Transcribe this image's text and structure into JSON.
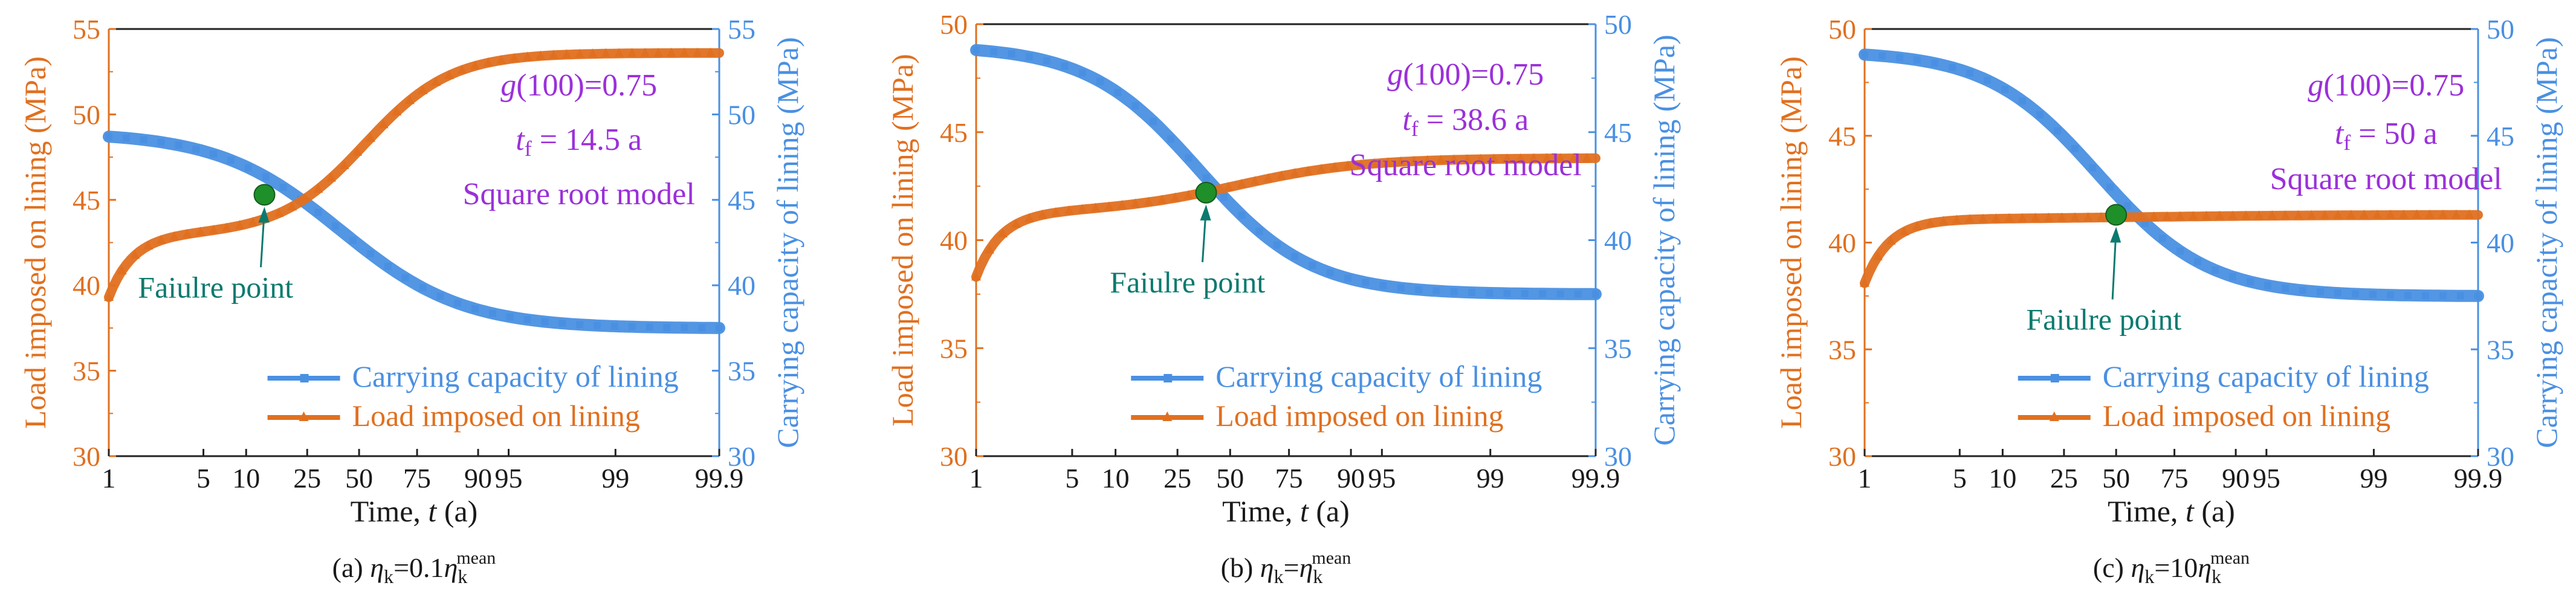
{
  "colors": {
    "load": "#e07020",
    "capacity": "#4a90e2",
    "failure": "#1f8f2a",
    "annotation": "#9b30d9",
    "failure_text": "#0b7a6f"
  },
  "chart_data": [
    {
      "type": "line",
      "panel": "a",
      "caption": {
        "prefix": "(a) ",
        "eta": "η",
        "sub": "k",
        "rel": "=0.1",
        "eta2": "η",
        "sub2": "k",
        "sup2": "mean"
      },
      "xlabel": {
        "prefix": "Time, ",
        "var": "t",
        "suffix": " (a)"
      },
      "ylabel_left": "Load imposed on lining (MPa)",
      "ylabel_right": "Carrying capacity of lining (MPa)",
      "ylim": [
        30,
        55
      ],
      "yticks": [
        "30",
        "35",
        "40",
        "45",
        "50",
        "55"
      ],
      "xticks": [
        "1",
        "5",
        "10",
        "25",
        "50",
        "75",
        "90",
        "95",
        "99",
        "99.9"
      ],
      "annotation": {
        "g_label": "g",
        "g_value": "(100)=0.75",
        "tf_var": "t",
        "tf_sub": "f",
        "tf_value": " = 14.5 a",
        "model": "Square root model"
      },
      "failure_label": "Faiulre point",
      "failure_point": {
        "t": 14.5,
        "value": 45.3
      },
      "legend": [
        "Carrying capacity of lining",
        "Load imposed on lining"
      ],
      "series": [
        {
          "name": "Load imposed on lining",
          "axis": "left",
          "start": 39.3,
          "shoulder": 43.0,
          "final": 53.6,
          "rise_center": 0.42,
          "rise_width": 0.07
        },
        {
          "name": "Carrying capacity of lining",
          "axis": "right",
          "start": 48.7,
          "final": 37.5,
          "drop_center": 0.38,
          "drop_width": 0.1
        }
      ]
    },
    {
      "type": "line",
      "panel": "b",
      "caption": {
        "prefix": "(b) ",
        "eta": "η",
        "sub": "k",
        "rel": "=",
        "eta2": "η",
        "sub2": "k",
        "sup2": "mean"
      },
      "xlabel": {
        "prefix": "Time, ",
        "var": "t",
        "suffix": " (a)"
      },
      "ylabel_left": "Load imposed on lining (MPa)",
      "ylabel_right": "Carrying capacity of lining (MPa)",
      "ylim": [
        30,
        50
      ],
      "yticks": [
        "30",
        "35",
        "40",
        "45",
        "50"
      ],
      "xticks": [
        "1",
        "5",
        "10",
        "25",
        "50",
        "75",
        "90",
        "95",
        "99",
        "99.9"
      ],
      "annotation": {
        "g_label": "g",
        "g_value": "(100)=0.75",
        "tf_var": "t",
        "tf_sub": "f",
        "tf_value": " = 38.6 a",
        "model": "Square root model"
      },
      "failure_label": "Faiulre point",
      "failure_point": {
        "t": 38.6,
        "value": 42.2
      },
      "legend": [
        "Carrying capacity of lining",
        "Load imposed on lining"
      ],
      "series": [
        {
          "name": "Load imposed on lining",
          "axis": "left",
          "start": 38.3,
          "shoulder": 41.3,
          "final": 43.8,
          "rise_center": 0.42,
          "rise_width": 0.1
        },
        {
          "name": "Carrying capacity of lining",
          "axis": "right",
          "start": 48.8,
          "final": 37.5,
          "drop_center": 0.36,
          "drop_width": 0.09
        }
      ]
    },
    {
      "type": "line",
      "panel": "c",
      "caption": {
        "prefix": "(c) ",
        "eta": "η",
        "sub": "k",
        "rel": "=10",
        "eta2": "η",
        "sub2": "k",
        "sup2": "mean"
      },
      "xlabel": {
        "prefix": "Time, ",
        "var": "t",
        "suffix": " (a)"
      },
      "ylabel_left": "Load imposed on lining (MPa)",
      "ylabel_right": "Carrying capacity of lining (MPa)",
      "ylim": [
        30,
        50
      ],
      "yticks": [
        "30",
        "35",
        "40",
        "45",
        "50"
      ],
      "xticks": [
        "1",
        "5",
        "10",
        "25",
        "50",
        "75",
        "90",
        "95",
        "99",
        "99.9"
      ],
      "annotation": {
        "g_label": "g",
        "g_value": "(100)=0.75",
        "tf_var": "t",
        "tf_sub": "f",
        "tf_value": " = 50 a",
        "model": "Square root model"
      },
      "failure_label": "Faiulre point",
      "failure_point": {
        "t": 50,
        "value": 41.3
      },
      "legend": [
        "Carrying capacity of lining",
        "Load imposed on lining"
      ],
      "series": [
        {
          "name": "Load imposed on lining",
          "axis": "left",
          "start": 38.1,
          "shoulder": 41.1,
          "final": 41.3,
          "rise_center": 0.45,
          "rise_width": 0.15
        },
        {
          "name": "Carrying capacity of lining",
          "axis": "right",
          "start": 48.8,
          "final": 37.5,
          "drop_center": 0.38,
          "drop_width": 0.09
        }
      ]
    }
  ]
}
